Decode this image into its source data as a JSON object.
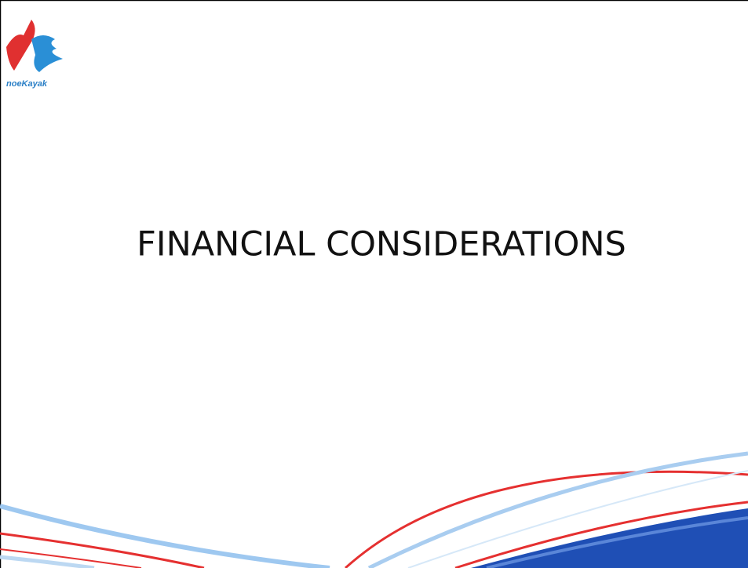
{
  "slide": {
    "logo_text": "noeKayak",
    "title": "FINANCIAL CONSIDERATIONS"
  }
}
